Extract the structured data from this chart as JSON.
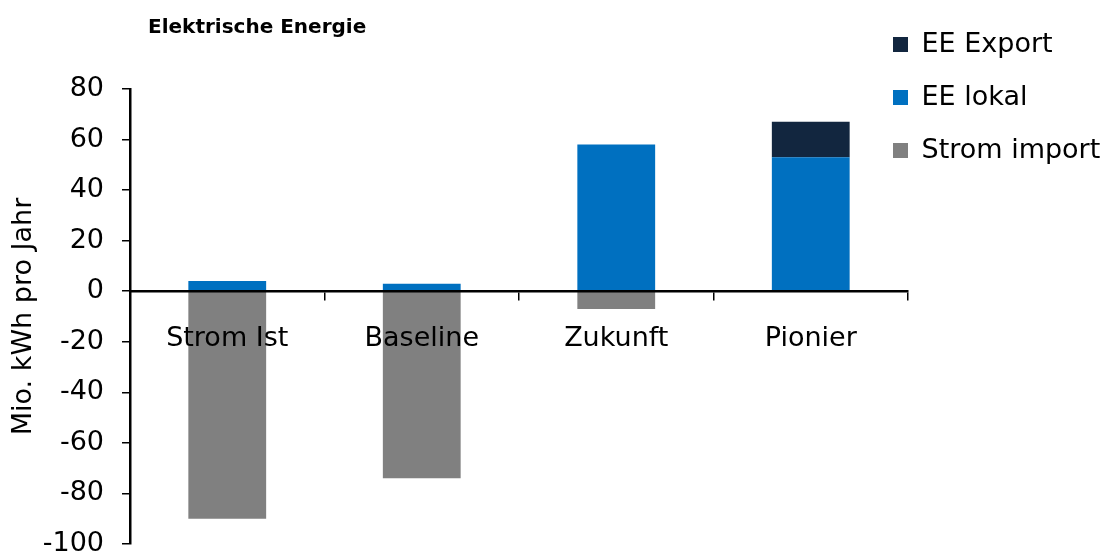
{
  "chart_data": {
    "type": "bar",
    "title": "Elektrische Energie",
    "ylabel": "Mio. kWh pro Jahr",
    "categories": [
      "Strom Ist",
      "Baseline",
      "Zukunft",
      "Pionier"
    ],
    "series": [
      {
        "name": "Strom import",
        "color": "#808080",
        "values": [
          -90,
          -74,
          -7,
          null
        ]
      },
      {
        "name": "EE lokal",
        "color": "#0070c0",
        "values": [
          4,
          3,
          58,
          53
        ]
      },
      {
        "name": "EE Export",
        "color": "#12263f",
        "values": [
          null,
          null,
          null,
          14
        ]
      }
    ],
    "stacked": true,
    "ylim": [
      -100,
      80
    ],
    "yticks": [
      -100,
      -80,
      -60,
      -40,
      -20,
      0,
      20,
      40,
      60,
      80
    ],
    "legend": "top right"
  }
}
